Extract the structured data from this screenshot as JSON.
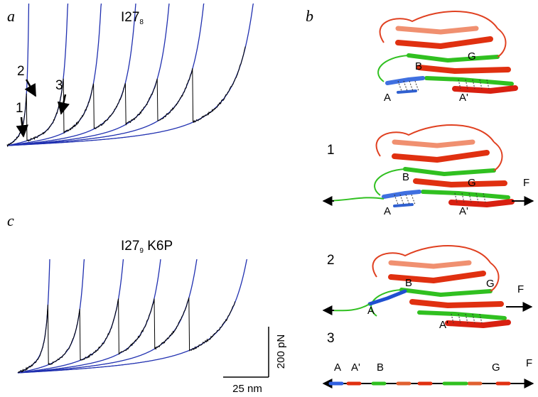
{
  "panel_a": {
    "letter": "a",
    "title": "I27",
    "title_sub": "8",
    "events": [
      "1",
      "2",
      "3"
    ]
  },
  "panel_b": {
    "letter": "b",
    "structures": [
      {
        "labels": {
          "A": "A",
          "B": "B",
          "G": "G",
          "A_prime": "A'"
        }
      },
      {
        "state": "1",
        "labels": {
          "A": "A",
          "B": "B",
          "G": "G",
          "A_prime": "A'"
        },
        "force": "F"
      },
      {
        "state": "2",
        "labels": {
          "A": "A",
          "B": "B",
          "G": "G",
          "A_prime": "A'"
        },
        "force": "F"
      },
      {
        "state": "3",
        "labels": {
          "A": "A",
          "A_prime": "A'",
          "B": "B",
          "G": "G"
        },
        "force": "F"
      }
    ]
  },
  "panel_c": {
    "letter": "c",
    "title": "I27",
    "title_sub": "9",
    "title_suffix": " K6P",
    "scale_force": "200 pN",
    "scale_length": "25 nm"
  }
}
